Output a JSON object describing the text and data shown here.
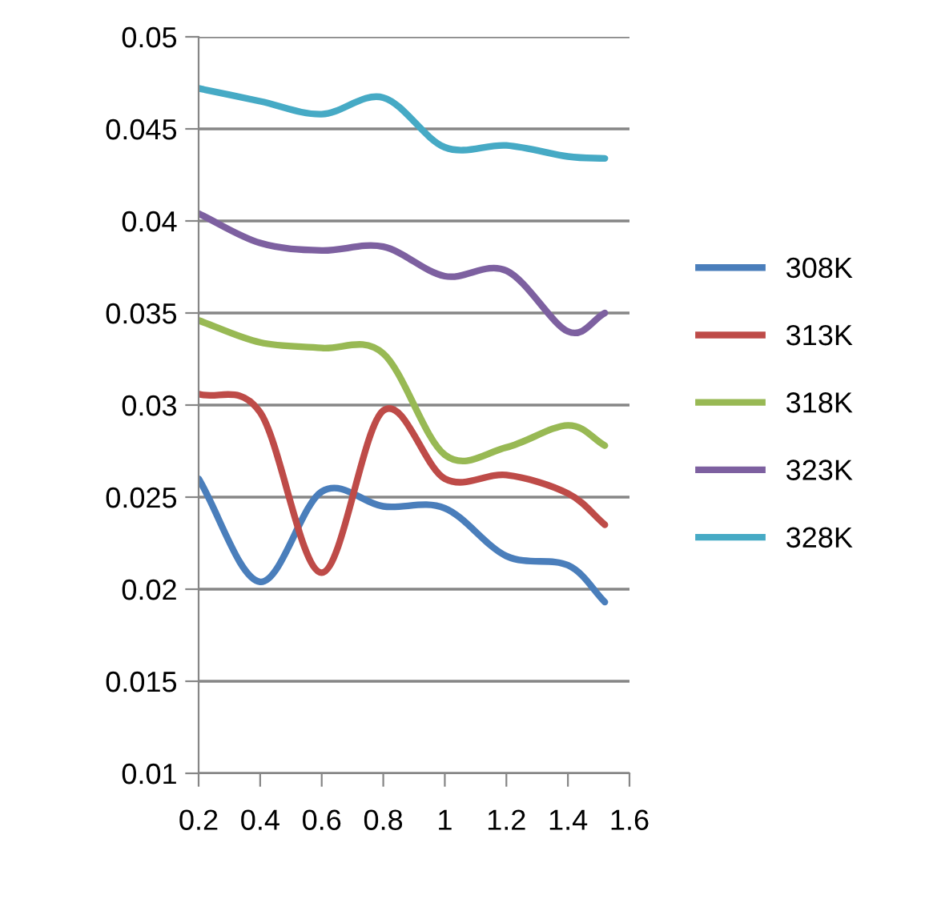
{
  "chart_data": {
    "type": "line",
    "x": [
      0.2,
      0.4,
      0.6,
      0.8,
      1.0,
      1.2,
      1.4,
      1.52
    ],
    "series": [
      {
        "name": "308K",
        "color": "#4a7ebb",
        "values": [
          0.026,
          0.0204,
          0.0253,
          0.0245,
          0.0244,
          0.0218,
          0.0213,
          0.0193
        ]
      },
      {
        "name": "313K",
        "color": "#be4b48",
        "values": [
          0.0306,
          0.0296,
          0.0209,
          0.0297,
          0.026,
          0.0262,
          0.0252,
          0.0235
        ]
      },
      {
        "name": "318K",
        "color": "#98b954",
        "values": [
          0.0346,
          0.0334,
          0.0331,
          0.0328,
          0.0273,
          0.0277,
          0.0289,
          0.0278
        ]
      },
      {
        "name": "323K",
        "color": "#7d60a0",
        "values": [
          0.0404,
          0.0388,
          0.0384,
          0.0386,
          0.037,
          0.0373,
          0.034,
          0.035
        ]
      },
      {
        "name": "328K",
        "color": "#46aac5",
        "values": [
          0.0472,
          0.0465,
          0.0458,
          0.0467,
          0.044,
          0.0441,
          0.0435,
          0.0434
        ]
      }
    ],
    "xlim": [
      0.2,
      1.6
    ],
    "xticks": [
      0.2,
      0.4,
      0.6,
      0.8,
      1,
      1.2,
      1.4,
      1.6
    ],
    "ylim": [
      0.01,
      0.05
    ],
    "yticks": [
      0.01,
      0.015,
      0.02,
      0.025,
      0.03,
      0.035,
      0.04,
      0.045,
      0.05
    ],
    "grid": "y",
    "legend": "right",
    "marker": "none",
    "line_style": "solid"
  }
}
